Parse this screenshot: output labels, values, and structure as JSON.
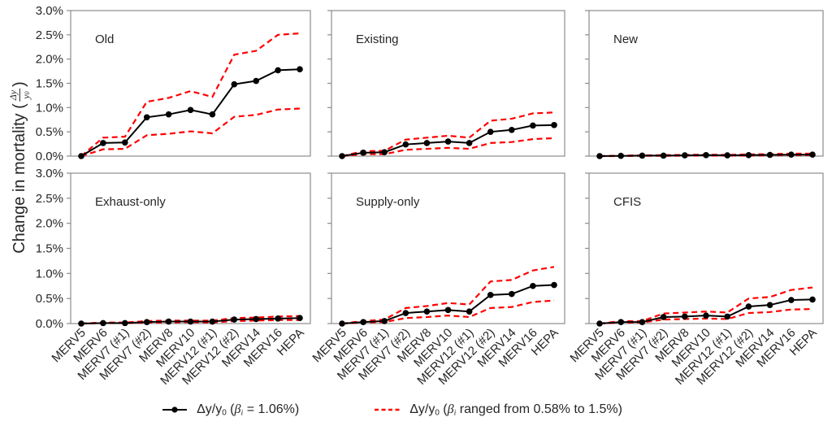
{
  "figure": {
    "y_axis_title": {
      "prefix": "Change in mortality (",
      "frac_numerator": "Δy",
      "frac_denominator_base": "y",
      "frac_denominator_sub": "0",
      "suffix": ")"
    },
    "colors": {
      "mean_line": "#000000",
      "range_line": "#ff0000",
      "panel_border": "#8c8c8c",
      "tick": "#8c8c8c",
      "text": "#262626"
    }
  },
  "chart_data": {
    "type": "line",
    "title": "",
    "xlabel": "",
    "ylabel": "Change in mortality (Δy/y0)",
    "categories": [
      "MERV5",
      "MERV6",
      "MERV7 (#1)",
      "MERV7 (#2)",
      "MERV8",
      "MERV10",
      "MERV12 (#1)",
      "MERV12 (#2)",
      "MERV14",
      "MERV16",
      "HEPA"
    ],
    "y_axis": {
      "min": 0.0,
      "max": 3.0,
      "tick_step": 0.5,
      "tick_labels": [
        "3.0%",
        "2.5%",
        "2.0%",
        "1.5%",
        "1.0%",
        "0.5%",
        "0.0%"
      ],
      "grid": false
    },
    "legend_position": "bottom",
    "series_styles": [
      {
        "name": "mean",
        "style": "black solid line with circle markers"
      },
      {
        "name": "upper",
        "style": "red dashed line"
      },
      {
        "name": "lower",
        "style": "red dashed line"
      }
    ],
    "panels": [
      {
        "label": "Old",
        "row": 0,
        "col": 0,
        "series": {
          "mean": [
            0.0,
            0.27,
            0.28,
            0.8,
            0.86,
            0.95,
            0.86,
            1.48,
            1.55,
            1.77,
            1.79
          ],
          "upper": [
            0.0,
            0.38,
            0.4,
            1.12,
            1.2,
            1.34,
            1.22,
            2.09,
            2.17,
            2.5,
            2.53
          ],
          "lower": [
            0.0,
            0.14,
            0.15,
            0.43,
            0.46,
            0.51,
            0.47,
            0.81,
            0.85,
            0.96,
            0.98
          ]
        }
      },
      {
        "label": "Existing",
        "row": 0,
        "col": 1,
        "series": {
          "mean": [
            0.0,
            0.07,
            0.08,
            0.24,
            0.27,
            0.3,
            0.27,
            0.5,
            0.54,
            0.63,
            0.64
          ],
          "upper": [
            0.0,
            0.1,
            0.11,
            0.34,
            0.38,
            0.42,
            0.38,
            0.73,
            0.77,
            0.88,
            0.9
          ],
          "lower": [
            0.0,
            0.04,
            0.04,
            0.13,
            0.15,
            0.17,
            0.15,
            0.27,
            0.29,
            0.35,
            0.37
          ]
        }
      },
      {
        "label": "New",
        "row": 0,
        "col": 2,
        "series": {
          "mean": [
            0.0,
            0.005,
            0.01,
            0.01,
            0.015,
            0.02,
            0.015,
            0.02,
            0.025,
            0.03,
            0.03
          ],
          "upper": [
            0.0,
            0.01,
            0.015,
            0.02,
            0.025,
            0.03,
            0.025,
            0.035,
            0.04,
            0.05,
            0.05
          ],
          "lower": [
            0.0,
            0.0,
            0.005,
            0.005,
            0.01,
            0.01,
            0.01,
            0.01,
            0.015,
            0.02,
            0.02
          ]
        }
      },
      {
        "label": "Exhaust-only",
        "row": 1,
        "col": 0,
        "series": {
          "mean": [
            0.0,
            0.01,
            0.01,
            0.03,
            0.04,
            0.04,
            0.04,
            0.08,
            0.09,
            0.1,
            0.11
          ],
          "upper": [
            0.0,
            0.02,
            0.02,
            0.05,
            0.06,
            0.06,
            0.06,
            0.11,
            0.12,
            0.14,
            0.15
          ],
          "lower": [
            0.0,
            0.01,
            0.01,
            0.02,
            0.02,
            0.03,
            0.02,
            0.05,
            0.06,
            0.07,
            0.07
          ]
        }
      },
      {
        "label": "Supply-only",
        "row": 1,
        "col": 1,
        "series": {
          "mean": [
            0.0,
            0.03,
            0.05,
            0.21,
            0.24,
            0.27,
            0.24,
            0.57,
            0.59,
            0.75,
            0.77
          ],
          "upper": [
            0.0,
            0.05,
            0.08,
            0.31,
            0.35,
            0.41,
            0.38,
            0.84,
            0.87,
            1.06,
            1.13
          ],
          "lower": [
            0.0,
            0.02,
            0.03,
            0.11,
            0.13,
            0.16,
            0.13,
            0.31,
            0.33,
            0.43,
            0.46
          ]
        }
      },
      {
        "label": "CFIS",
        "row": 1,
        "col": 2,
        "series": {
          "mean": [
            0.0,
            0.03,
            0.03,
            0.13,
            0.14,
            0.16,
            0.14,
            0.34,
            0.37,
            0.47,
            0.48
          ],
          "upper": [
            0.0,
            0.05,
            0.05,
            0.2,
            0.22,
            0.24,
            0.22,
            0.5,
            0.53,
            0.67,
            0.72
          ],
          "lower": [
            0.0,
            0.02,
            0.02,
            0.08,
            0.09,
            0.1,
            0.09,
            0.21,
            0.23,
            0.28,
            0.29
          ]
        }
      }
    ]
  },
  "legend": {
    "entries": [
      {
        "marker": "mean",
        "segments": [
          {
            "text": "Δy/y"
          },
          {
            "text": "0",
            "sub": true
          },
          {
            "text": " ("
          },
          {
            "text": "β",
            "italic": true
          },
          {
            "text": "i",
            "sub": true,
            "italic": true
          },
          {
            "text": " = 1.06%)"
          }
        ]
      },
      {
        "marker": "range",
        "segments": [
          {
            "text": "Δy/y"
          },
          {
            "text": "0",
            "sub": true
          },
          {
            "text": " ("
          },
          {
            "text": "β",
            "italic": true
          },
          {
            "text": "i",
            "sub": true,
            "italic": true
          },
          {
            "text": " ranged from 0.58% to 1.5%)"
          }
        ]
      }
    ]
  }
}
